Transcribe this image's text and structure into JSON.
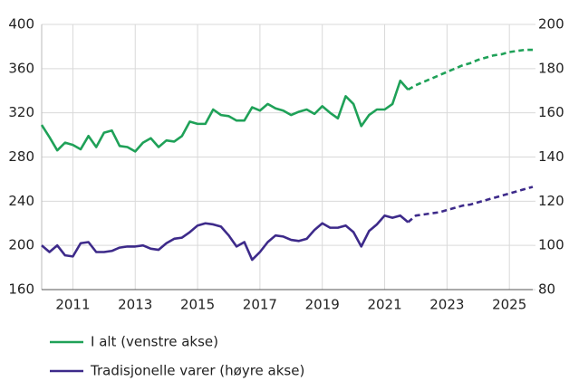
{
  "chart_data": {
    "type": "line",
    "x": [
      2010,
      2010.25,
      2010.5,
      2010.75,
      2011,
      2011.25,
      2011.5,
      2011.75,
      2012,
      2012.25,
      2012.5,
      2012.75,
      2013,
      2013.25,
      2013.5,
      2013.75,
      2014,
      2014.25,
      2014.5,
      2014.75,
      2015,
      2015.25,
      2015.5,
      2015.75,
      2016,
      2016.25,
      2016.5,
      2016.75,
      2017,
      2017.25,
      2017.5,
      2017.75,
      2018,
      2018.25,
      2018.5,
      2018.75,
      2019,
      2019.25,
      2019.5,
      2019.75,
      2020,
      2020.25,
      2020.5,
      2020.75,
      2021,
      2021.25,
      2021.5,
      2021.75,
      2022,
      2022.25,
      2022.5,
      2022.75,
      2023,
      2023.25,
      2023.5,
      2023.75,
      2024,
      2024.25,
      2024.5,
      2024.75,
      2025,
      2025.25,
      2025.5,
      2025.75
    ],
    "forecast_from": 2021.75,
    "series": [
      {
        "name": "I alt (venstre akse)",
        "color": "#1fa158",
        "values": [
          309,
          298,
          286,
          293,
          291,
          287,
          299,
          289,
          302,
          304,
          290,
          289,
          285,
          293,
          297,
          289,
          295,
          294,
          299,
          312,
          310,
          310,
          323,
          318,
          317,
          313,
          313,
          325,
          322,
          328,
          324,
          322,
          318,
          321,
          323,
          319,
          326,
          320,
          315,
          335,
          328,
          308,
          318,
          323,
          323,
          328,
          349,
          341,
          345,
          348,
          351,
          354,
          357,
          360,
          363,
          365,
          368,
          370,
          372,
          373,
          375,
          376,
          377,
          377
        ]
      },
      {
        "name": "Tradisjonelle varer (høyre akse)",
        "color": "#3d2a8a",
        "axis": "y2",
        "values": [
          100,
          97,
          100,
          95.5,
          95,
          101,
          101.5,
          97,
          97,
          97.5,
          99,
          99.5,
          99.5,
          100,
          98.5,
          98,
          101,
          103,
          103.5,
          106,
          109,
          110,
          109.5,
          108.5,
          104.5,
          99.5,
          101.5,
          93.5,
          97,
          101.5,
          104.5,
          104,
          102.5,
          102,
          103,
          107,
          110,
          108,
          108,
          109,
          106,
          99.5,
          106.5,
          109.5,
          113.5,
          112.5,
          113.5,
          110.5,
          113.5,
          114,
          114.5,
          115,
          116,
          117,
          118,
          118.5,
          119.5,
          120.5,
          121.5,
          122.5,
          123.5,
          124.5,
          125.5,
          126.5
        ]
      }
    ],
    "xlim": [
      2010,
      2025.75
    ],
    "xticks": [
      2011,
      2013,
      2015,
      2017,
      2019,
      2021,
      2023,
      2025
    ],
    "ylim": [
      160,
      400
    ],
    "yticks": [
      160,
      200,
      240,
      280,
      320,
      360,
      400
    ],
    "y2lim": [
      80,
      200
    ],
    "y2ticks": [
      80,
      100,
      120,
      140,
      160,
      180,
      200
    ],
    "grid": true
  }
}
